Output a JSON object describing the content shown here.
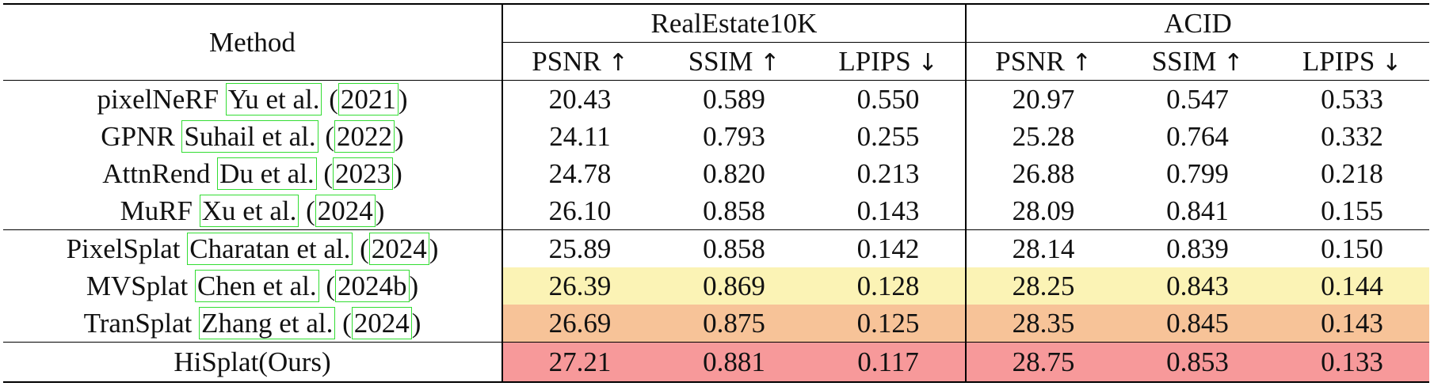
{
  "table": {
    "method_header": "Method",
    "datasets": [
      "RealEstate10K",
      "ACID"
    ],
    "metrics": [
      {
        "name": "PSNR",
        "arrow": "↑"
      },
      {
        "name": "SSIM",
        "arrow": "↑"
      },
      {
        "name": "LPIPS",
        "arrow": "↓"
      }
    ],
    "rows": [
      {
        "method": "pixelNeRF",
        "cite_author": "Yu et al.",
        "cite_year": "2021",
        "open": "(",
        "close": ")",
        "values": [
          "20.43",
          "0.589",
          "0.550",
          "20.97",
          "0.547",
          "0.533"
        ],
        "highlight": "none"
      },
      {
        "method": "GPNR",
        "cite_author": "Suhail et al.",
        "cite_year": "2022",
        "open": "(",
        "close": ")",
        "values": [
          "24.11",
          "0.793",
          "0.255",
          "25.28",
          "0.764",
          "0.332"
        ],
        "highlight": "none"
      },
      {
        "method": "AttnRend",
        "cite_author": "Du et al.",
        "cite_year": "2023",
        "open": "(",
        "close": ")",
        "values": [
          "24.78",
          "0.820",
          "0.213",
          "26.88",
          "0.799",
          "0.218"
        ],
        "highlight": "none"
      },
      {
        "method": "MuRF",
        "cite_author": "Xu et al.",
        "cite_year": "2024",
        "open": "(",
        "close": ")",
        "values": [
          "26.10",
          "0.858",
          "0.143",
          "28.09",
          "0.841",
          "0.155"
        ],
        "highlight": "none"
      },
      {
        "method": "PixelSplat",
        "cite_author": "Charatan et al.",
        "cite_year": "2024",
        "open": "(",
        "close": ")",
        "values": [
          "25.89",
          "0.858",
          "0.142",
          "28.14",
          "0.839",
          "0.150"
        ],
        "highlight": "none"
      },
      {
        "method": "MVSplat",
        "cite_author": "Chen et al.",
        "cite_year": "2024b",
        "open": "(",
        "close": ")",
        "values": [
          "26.39",
          "0.869",
          "0.128",
          "28.25",
          "0.843",
          "0.144"
        ],
        "highlight": "yellow"
      },
      {
        "method": "TranSplat",
        "cite_author": "Zhang et al.",
        "cite_year": "2024",
        "open": "(",
        "close": ")",
        "values": [
          "26.69",
          "0.875",
          "0.125",
          "28.35",
          "0.845",
          "0.143"
        ],
        "highlight": "orange"
      }
    ],
    "ours": {
      "method": "HiSplat(Ours)",
      "values": [
        "27.21",
        "0.881",
        "0.117",
        "28.75",
        "0.853",
        "0.133"
      ],
      "highlight": "red"
    },
    "highlight_colors": {
      "yellow": "#fbf3b5",
      "orange": "#f7c398",
      "red": "#f7999a",
      "citation_box": "#33dd33"
    }
  }
}
